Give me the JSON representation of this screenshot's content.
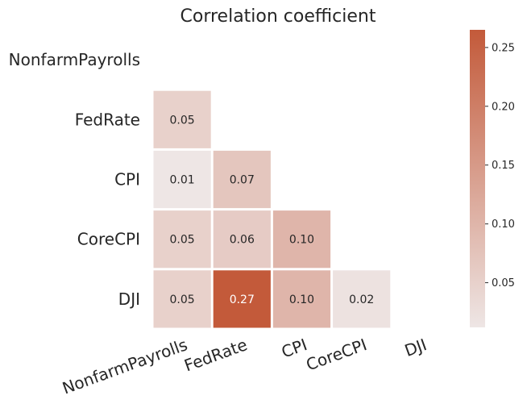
{
  "chart_data": {
    "type": "heatmap",
    "title": "Correlation coefficient",
    "variables": [
      "NonfarmPayrolls",
      "FedRate",
      "CPI",
      "CoreCPI",
      "DJI"
    ],
    "mask": "upper triangle and diagonal",
    "cells": [
      {
        "row": "FedRate",
        "col": "NonfarmPayrolls",
        "value": 0.05,
        "label": "0.05"
      },
      {
        "row": "CPI",
        "col": "NonfarmPayrolls",
        "value": 0.01,
        "label": "0.01"
      },
      {
        "row": "CPI",
        "col": "FedRate",
        "value": 0.07,
        "label": "0.07"
      },
      {
        "row": "CoreCPI",
        "col": "NonfarmPayrolls",
        "value": 0.05,
        "label": "0.05"
      },
      {
        "row": "CoreCPI",
        "col": "FedRate",
        "value": 0.06,
        "label": "0.06"
      },
      {
        "row": "CoreCPI",
        "col": "CPI",
        "value": 0.1,
        "label": "0.10"
      },
      {
        "row": "DJI",
        "col": "NonfarmPayrolls",
        "value": 0.05,
        "label": "0.05"
      },
      {
        "row": "DJI",
        "col": "FedRate",
        "value": 0.27,
        "label": "0.27"
      },
      {
        "row": "DJI",
        "col": "CPI",
        "value": 0.1,
        "label": "0.10"
      },
      {
        "row": "DJI",
        "col": "CoreCPI",
        "value": 0.02,
        "label": "0.02"
      }
    ],
    "colorbar": {
      "range": [
        0.012,
        0.265
      ],
      "ticks": [
        0.05,
        0.1,
        0.15,
        0.2,
        0.25
      ],
      "tick_labels": [
        "0.05",
        "0.10",
        "0.15",
        "0.20",
        "0.25"
      ]
    },
    "colors": {
      "low": "#eee6e5",
      "high": "#c35a3a",
      "text_dark": "#262626",
      "text_light": "#ffffff"
    },
    "grid": false,
    "legend": "colorbar-right"
  }
}
